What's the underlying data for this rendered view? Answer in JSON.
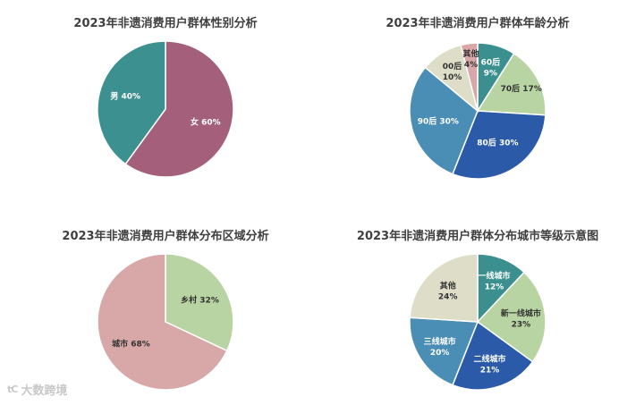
{
  "chart_data": [
    {
      "type": "pie",
      "title": "2023年非遗消费用户群体性别分析",
      "slices": [
        {
          "name": "女",
          "value": 60,
          "label": "60%",
          "color": "#a4607a",
          "text_color": "#ffffff"
        },
        {
          "name": "男",
          "value": 40,
          "label": "40%",
          "color": "#3d9090",
          "text_color": "#ffffff"
        }
      ]
    },
    {
      "type": "pie",
      "title": "2023年非遗消费用户群体年龄分析",
      "slices": [
        {
          "name": "60后",
          "value": 9,
          "label": "9%",
          "color": "#3b8f8f",
          "text_color": "#ffffff"
        },
        {
          "name": "70后",
          "value": 17,
          "label": "17%",
          "color": "#b8d4a3",
          "text_color": "#333333"
        },
        {
          "name": "80后",
          "value": 30,
          "label": "30%",
          "color": "#2b5aa8",
          "text_color": "#ffffff"
        },
        {
          "name": "90后",
          "value": 30,
          "label": "30%",
          "color": "#4a8db5",
          "text_color": "#ffffff"
        },
        {
          "name": "00后",
          "value": 10,
          "label": "10%",
          "color": "#ddddc8",
          "text_color": "#333333"
        },
        {
          "name": "其他",
          "value": 4,
          "label": "4%",
          "color": "#d8a8a8",
          "text_color": "#333333"
        }
      ]
    },
    {
      "type": "pie",
      "title": "2023年非遗消费用户群体分布区域分析",
      "slices": [
        {
          "name": "乡村",
          "value": 32,
          "label": "32%",
          "color": "#b8d4a3",
          "text_color": "#333333"
        },
        {
          "name": "城市",
          "value": 68,
          "label": "68%",
          "color": "#d8a8a8",
          "text_color": "#333333"
        }
      ]
    },
    {
      "type": "pie",
      "title": "2023年非遗消费用户群体分布城市等级示意图",
      "slices": [
        {
          "name": "一线城市",
          "value": 12,
          "label": "12%",
          "color": "#3b8f8f",
          "text_color": "#ffffff"
        },
        {
          "name": "新一线城市",
          "value": 23,
          "label": "23%",
          "color": "#b8d4a3",
          "text_color": "#333333"
        },
        {
          "name": "二线城市",
          "value": 21,
          "label": "21%",
          "color": "#2b5aa8",
          "text_color": "#ffffff"
        },
        {
          "name": "三线城市",
          "value": 20,
          "label": "20%",
          "color": "#4a8db5",
          "text_color": "#ffffff"
        },
        {
          "name": "其他",
          "value": 24,
          "label": "24%",
          "color": "#ddddc8",
          "text_color": "#333333"
        }
      ]
    }
  ],
  "watermark": {
    "text": "大数跨境",
    "logo": "tC"
  }
}
